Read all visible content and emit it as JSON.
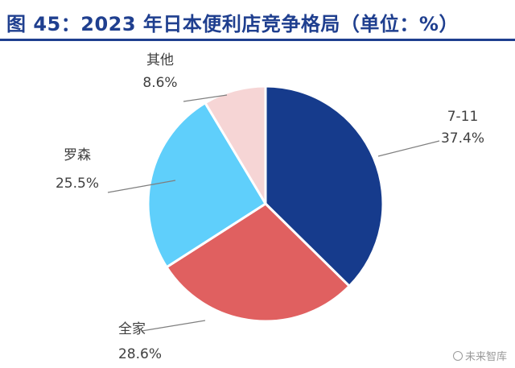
{
  "header": {
    "title": "图 45：2023 年日本便利店竞争格局（单位：%）"
  },
  "watermark": "未来智库",
  "colors": {
    "title": "#1F3F8F",
    "rule": "#1F3F8F",
    "leader": "#7f7f7f",
    "label": "#404040"
  },
  "chart_data": {
    "type": "pie",
    "start_angle_deg": 0,
    "direction": "clockwise",
    "slices": [
      {
        "name": "7-11",
        "value": 37.4,
        "label": "37.4%",
        "color": "#163B8C"
      },
      {
        "name": "全家",
        "value": 28.6,
        "label": "28.6%",
        "color": "#E06060"
      },
      {
        "name": "罗森",
        "value": 25.5,
        "label": "25.5%",
        "color": "#5FCFFB"
      },
      {
        "name": "其他",
        "value": 8.6,
        "label": "8.6%",
        "color": "#F6D5D5"
      }
    ]
  }
}
